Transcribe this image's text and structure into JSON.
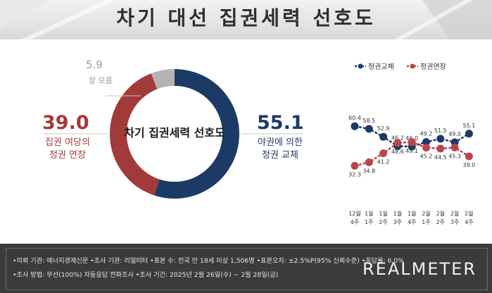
{
  "title": "차기 대선 집권세력 선호도",
  "donut": {
    "center_label": "차기 집권세력 선호도",
    "segments": [
      {
        "name_lines": [
          "야권에 의한",
          "정권 교체"
        ],
        "value": 55.1,
        "value_label": "55.1",
        "color": "#1c3a66"
      },
      {
        "name_lines": [
          "집권 여당의",
          "정권 연장"
        ],
        "value": 39.0,
        "value_label": "39.0",
        "color": "#a33a3a"
      },
      {
        "name_lines": [
          "잘 모름"
        ],
        "value": 5.9,
        "value_label": "5.9",
        "color": "#b3b3b3"
      }
    ]
  },
  "chart_data": {
    "type": "line",
    "x": [
      "12월 4주",
      "1월 1주",
      "1월 2주",
      "1월 3주",
      "1월 4주",
      "2월 1주",
      "2월 2주",
      "2월 3주",
      "2월 4주"
    ],
    "x_lines": [
      [
        "12월",
        "4주"
      ],
      [
        "1월",
        "1주"
      ],
      [
        "1월",
        "2주"
      ],
      [
        "1월",
        "3주"
      ],
      [
        "1월",
        "4주"
      ],
      [
        "2월",
        "1주"
      ],
      [
        "2월",
        "2주"
      ],
      [
        "2월",
        "3주"
      ],
      [
        "2월",
        "4주"
      ]
    ],
    "series": [
      {
        "name": "정권교체",
        "color": "#1c3a66",
        "values": [
          60.4,
          58.5,
          52.9,
          46.2,
          46.0,
          49.2,
          51.5,
          49.0,
          55.1
        ]
      },
      {
        "name": "정권연장",
        "color": "#b9454a",
        "values": [
          32.3,
          34.8,
          41.2,
          48.6,
          49.1,
          45.2,
          44.5,
          45.3,
          39.0
        ]
      }
    ],
    "legend": "top",
    "grid": false
  },
  "footer": {
    "line1": "•의뢰 기관: 에너지경제신문 •조사 기관: 리얼미터 •표본 수: 전국 만 18세 이상 1,506명 •표본오차: ±2.5%P(95% 신뢰수준) •응답률: 6.0%",
    "line2": "•조사 방법: 무선(100%) 자동응답 전화조사 •조사 기간: 2025년 2월 26일(수) ~ 2월 28일(금)",
    "logo": "REALMETER"
  }
}
